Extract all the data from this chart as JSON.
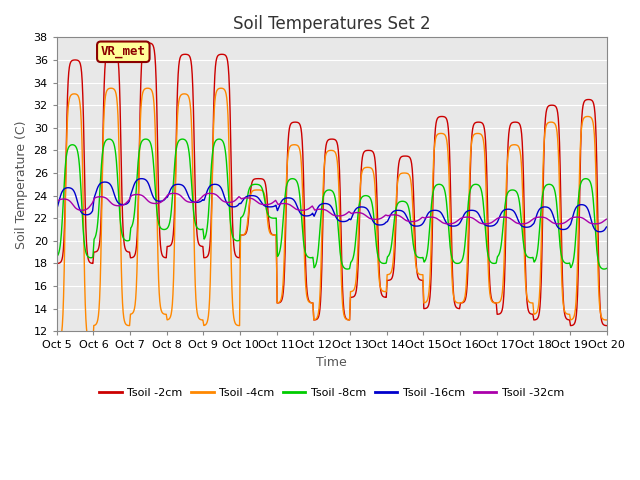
{
  "title": "Soil Temperatures Set 2",
  "xlabel": "Time",
  "ylabel": "Soil Temperature (C)",
  "xlim": [
    0,
    15
  ],
  "ylim": [
    12,
    38
  ],
  "yticks": [
    12,
    14,
    16,
    18,
    20,
    22,
    24,
    26,
    28,
    30,
    32,
    34,
    36,
    38
  ],
  "xtick_labels": [
    "Oct 5",
    "Oct 6",
    "Oct 7",
    "Oct 8",
    "Oct 9",
    "Oct 10",
    "Oct 11",
    "Oct 12",
    "Oct 13",
    "Oct 14",
    "Oct 15",
    "Oct 16",
    "Oct 17",
    "Oct 18",
    "Oct 19",
    "Oct 20"
  ],
  "xtick_positions": [
    0,
    1,
    2,
    3,
    4,
    5,
    6,
    7,
    8,
    9,
    10,
    11,
    12,
    13,
    14,
    15
  ],
  "colors": {
    "2cm": "#CC0000",
    "4cm": "#FF8800",
    "8cm": "#00CC00",
    "16cm": "#0000CC",
    "32cm": "#AA00AA"
  },
  "legend_labels": [
    "Tsoil -2cm",
    "Tsoil -4cm",
    "Tsoil -8cm",
    "Tsoil -16cm",
    "Tsoil -32cm"
  ],
  "annotation_text": "VR_met",
  "annotation_color": "#8B0000",
  "annotation_bg": "#FFFF99",
  "plot_bg_color": "#E8E8E8",
  "grid_color": "#FFFFFF",
  "title_fontsize": 12,
  "tick_fontsize": 8,
  "ylabel_fontsize": 9,
  "xlabel_fontsize": 9
}
